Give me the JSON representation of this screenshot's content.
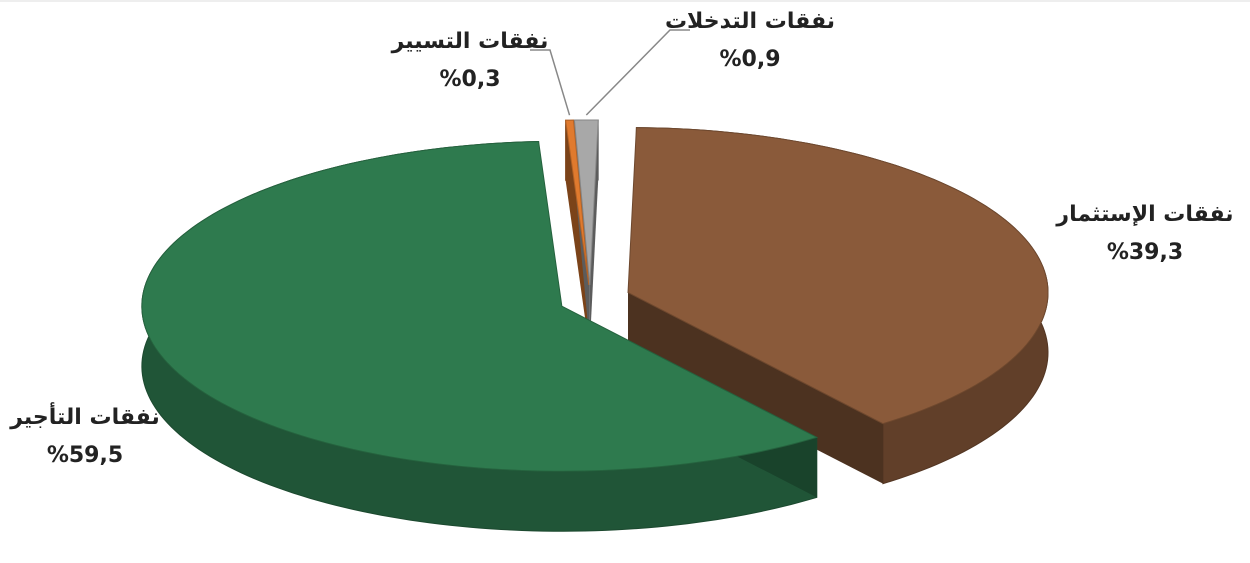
{
  "chart_data": {
    "type": "pie",
    "categories": [
      "نفقات الإستثمار",
      "نفقات التأجير",
      "نفقات التسيير",
      "نفقات التدخلات"
    ],
    "values": [
      39.3,
      59.5,
      0.3,
      0.9
    ],
    "value_labels": [
      "%39,3",
      "%59,5",
      "%0,3",
      "%0,9"
    ],
    "colors": [
      "#8a5a3a",
      "#2e7a4e",
      "#e07a2e",
      "#a8a8a8"
    ]
  }
}
